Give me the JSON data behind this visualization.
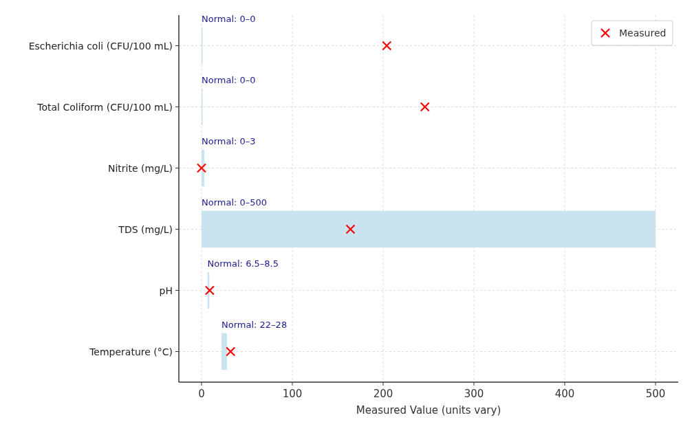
{
  "chart_data": {
    "type": "bar",
    "orientation": "horizontal",
    "xlabel": "Measured Value (units vary)",
    "categories": [
      "Escherichia coli (CFU/100 mL)",
      "Total Coliform (CFU/100 mL)",
      "Nitrite (mg/L)",
      "TDS (mg/L)",
      "pH",
      "Temperature (°C)"
    ],
    "series": [
      {
        "color": "#c9e4ee",
        "base": [
          0,
          0,
          0,
          0,
          6.5,
          22
        ],
        "values": [
          0,
          0,
          3,
          500,
          2,
          6
        ]
      },
      {
        "type": "scatter",
        "name": "Measured",
        "color": "#ff0000",
        "marker": "cross",
        "values": [
          204,
          246,
          0,
          164,
          9,
          32
        ]
      }
    ],
    "annotations": [
      {
        "text": "Normal: 0–0",
        "x": 0,
        "y": "Escherichia coli (CFU/100 mL)"
      },
      {
        "text": "Normal: 0–0",
        "x": 0,
        "y": "Total Coliform (CFU/100 mL)"
      },
      {
        "text": "Normal: 0–3",
        "x": 0,
        "y": "Nitrite (mg/L)"
      },
      {
        "text": "Normal: 0–500",
        "x": 0,
        "y": "TDS (mg/L)"
      },
      {
        "text": "Normal: 6.5–8.5",
        "x": 6.5,
        "y": "pH"
      },
      {
        "text": "Normal: 22–28",
        "x": 22,
        "y": "Temperature (°C)"
      }
    ],
    "xlim": [
      -25,
      525
    ],
    "xticks": [
      0,
      100,
      200,
      300,
      400,
      500
    ],
    "grid": true,
    "legend": "top right"
  }
}
